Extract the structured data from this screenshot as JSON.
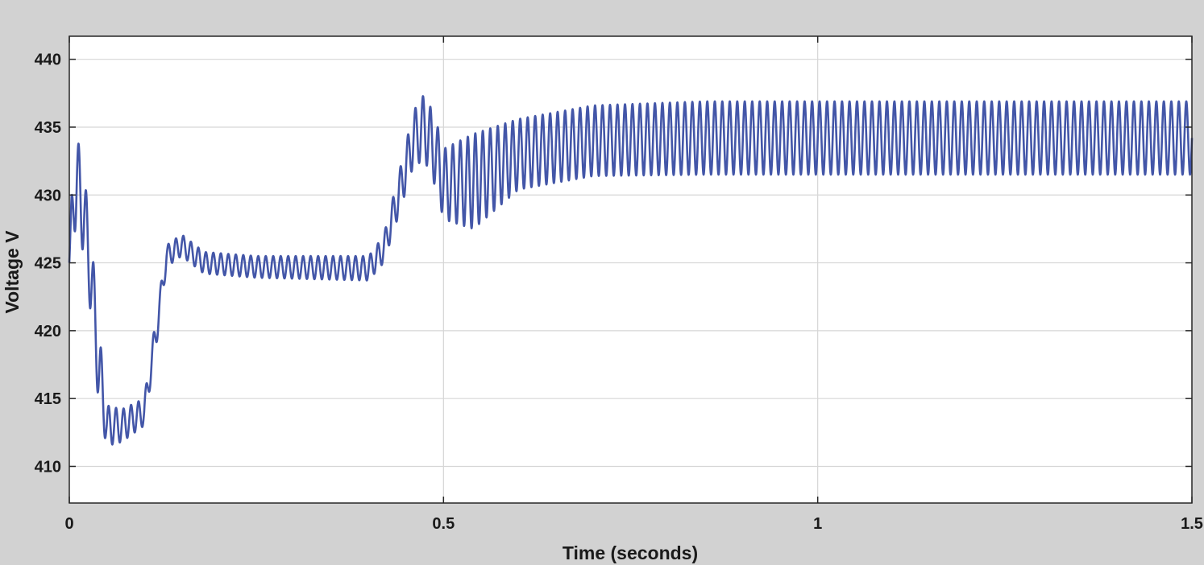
{
  "chart_data": {
    "type": "line",
    "title": "",
    "xlabel": "Time (seconds)",
    "ylabel": "Voltage V",
    "xlim": [
      0,
      1.5
    ],
    "ylim": [
      407.3,
      441.7
    ],
    "x_ticks": [
      0,
      0.5,
      1,
      1.5
    ],
    "x_tick_labels": [
      "0",
      "0.5",
      "1",
      "1.5"
    ],
    "y_ticks": [
      410,
      415,
      420,
      425,
      430,
      435,
      440
    ],
    "y_tick_labels": [
      "410",
      "415",
      "420",
      "425",
      "430",
      "435",
      "440"
    ],
    "grid": true,
    "legend": "none",
    "series": [
      {
        "color": "#4356a8",
        "ripple_frequency_hz": 100,
        "envelope": [
          {
            "t": 0.0,
            "mid": 425.0,
            "amp": 0.2
          },
          {
            "t": 0.003,
            "mid": 428.5,
            "amp": 1.5
          },
          {
            "t": 0.01,
            "mid": 431.0,
            "amp": 3.5
          },
          {
            "t": 0.02,
            "mid": 428.5,
            "amp": 3.0
          },
          {
            "t": 0.03,
            "mid": 423.5,
            "amp": 3.0
          },
          {
            "t": 0.04,
            "mid": 417.0,
            "amp": 3.0
          },
          {
            "t": 0.05,
            "mid": 413.0,
            "amp": 1.5
          },
          {
            "t": 0.07,
            "mid": 413.0,
            "amp": 1.2
          },
          {
            "t": 0.1,
            "mid": 414.0,
            "amp": 1.0
          },
          {
            "t": 0.115,
            "mid": 419.5,
            "amp": 1.2
          },
          {
            "t": 0.13,
            "mid": 425.5,
            "amp": 0.8
          },
          {
            "t": 0.15,
            "mid": 426.3,
            "amp": 0.8
          },
          {
            "t": 0.18,
            "mid": 425.0,
            "amp": 0.8
          },
          {
            "t": 0.25,
            "mid": 424.7,
            "amp": 0.8
          },
          {
            "t": 0.4,
            "mid": 424.6,
            "amp": 0.9
          },
          {
            "t": 0.42,
            "mid": 426.0,
            "amp": 1.0
          },
          {
            "t": 0.44,
            "mid": 430.0,
            "amp": 1.5
          },
          {
            "t": 0.46,
            "mid": 434.2,
            "amp": 2.0
          },
          {
            "t": 0.475,
            "mid": 435.0,
            "amp": 2.5
          },
          {
            "t": 0.49,
            "mid": 433.0,
            "amp": 2.5
          },
          {
            "t": 0.5,
            "mid": 430.8,
            "amp": 2.6
          },
          {
            "t": 0.54,
            "mid": 431.0,
            "amp": 3.5
          },
          {
            "t": 0.6,
            "mid": 433.0,
            "amp": 2.6
          },
          {
            "t": 0.7,
            "mid": 434.0,
            "amp": 2.6
          },
          {
            "t": 0.85,
            "mid": 434.2,
            "amp": 2.7
          },
          {
            "t": 1.0,
            "mid": 434.2,
            "amp": 2.7
          },
          {
            "t": 1.5,
            "mid": 434.2,
            "amp": 2.7
          }
        ]
      }
    ]
  }
}
